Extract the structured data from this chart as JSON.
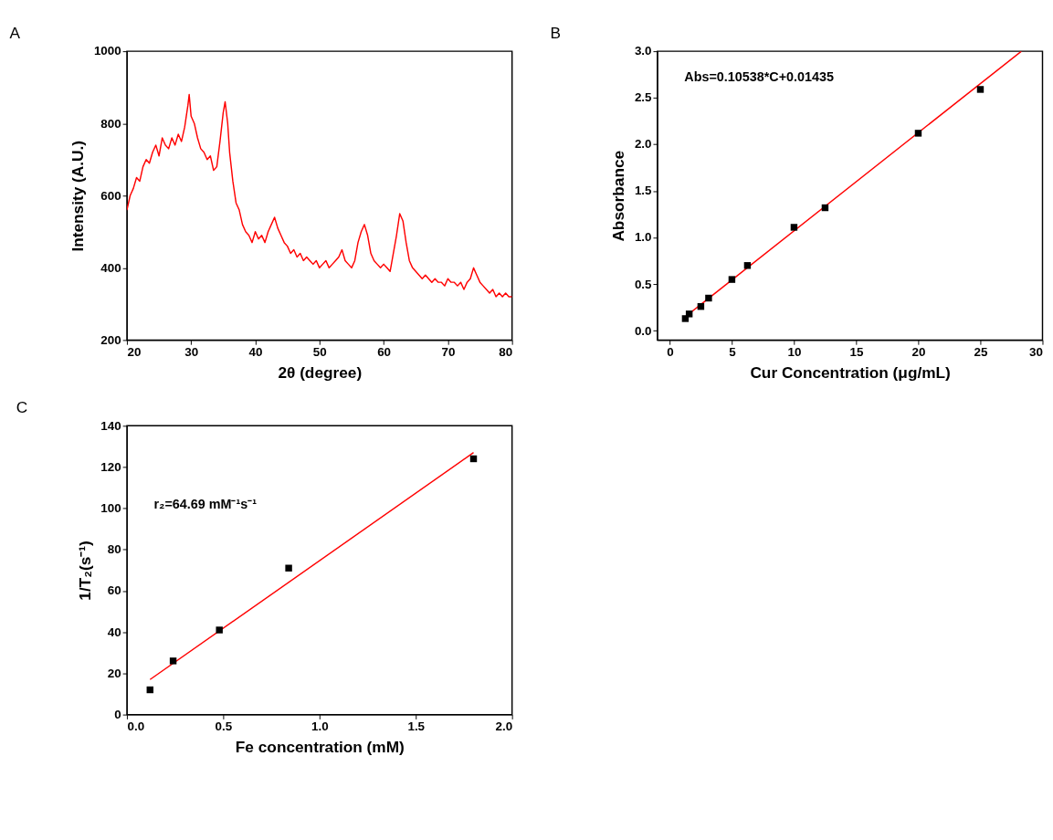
{
  "chart_data": [
    {
      "type": "line",
      "title": "A",
      "xlabel": "2θ (degree)",
      "ylabel": "Intensity (A.U.)",
      "xlim": [
        20,
        80
      ],
      "ylim": [
        200,
        1000
      ],
      "xticks": [
        20,
        30,
        40,
        50,
        60,
        70,
        80
      ],
      "yticks": [
        200,
        400,
        600,
        800,
        1000
      ],
      "grid": false,
      "series": [
        {
          "color": "#ff0000",
          "line_style": "solid",
          "x": [
            20,
            20.5,
            21,
            21.5,
            22,
            22.5,
            23,
            23.5,
            24,
            24.5,
            25,
            25.5,
            26,
            26.5,
            27,
            27.5,
            28,
            28.5,
            29,
            29.5,
            29.7,
            30,
            30.5,
            31,
            31.5,
            32,
            32.5,
            33,
            33.5,
            34,
            34.5,
            35,
            35.3,
            35.7,
            36,
            36.5,
            37,
            37.5,
            38,
            38.5,
            39,
            39.5,
            40,
            40.5,
            41,
            41.5,
            42,
            42.5,
            43,
            43.5,
            44,
            44.5,
            45,
            45.5,
            46,
            46.5,
            47,
            47.5,
            48,
            48.5,
            49,
            49.5,
            50,
            50.5,
            51,
            51.5,
            52,
            52.5,
            53,
            53.5,
            54,
            54.5,
            55,
            55.5,
            56,
            56.5,
            57,
            57.5,
            58,
            58.5,
            59,
            59.5,
            60,
            60.5,
            61,
            61.5,
            62,
            62.5,
            63,
            63.5,
            64,
            64.5,
            65,
            65.5,
            66,
            66.5,
            67,
            67.5,
            68,
            68.5,
            69,
            69.5,
            70,
            70.5,
            71,
            71.5,
            72,
            72.5,
            73,
            73.5,
            74,
            74.5,
            75,
            75.5,
            76,
            76.5,
            77,
            77.5,
            78,
            78.5,
            79,
            79.5,
            80
          ],
          "values": [
            560,
            600,
            620,
            650,
            640,
            680,
            700,
            690,
            720,
            740,
            710,
            760,
            740,
            730,
            760,
            740,
            770,
            750,
            790,
            850,
            880,
            820,
            800,
            760,
            730,
            720,
            700,
            710,
            670,
            680,
            750,
            830,
            860,
            800,
            720,
            640,
            580,
            560,
            520,
            500,
            490,
            470,
            500,
            480,
            490,
            470,
            500,
            520,
            540,
            510,
            490,
            470,
            460,
            440,
            450,
            430,
            440,
            420,
            430,
            420,
            410,
            420,
            400,
            410,
            420,
            400,
            410,
            420,
            430,
            450,
            420,
            410,
            400,
            420,
            470,
            500,
            520,
            490,
            440,
            420,
            410,
            400,
            410,
            400,
            390,
            440,
            490,
            550,
            530,
            470,
            420,
            400,
            390,
            380,
            370,
            380,
            370,
            360,
            370,
            360,
            360,
            350,
            370,
            360,
            360,
            350,
            360,
            340,
            360,
            370,
            400,
            380,
            360,
            350,
            340,
            330,
            340,
            320,
            330,
            320,
            330,
            320,
            320
          ]
        }
      ]
    },
    {
      "type": "scatter",
      "title": "B",
      "xlabel": "Cur Concentration (μg/mL)",
      "ylabel": "Absorbance",
      "xlim": [
        -1,
        30
      ],
      "ylim": [
        -0.1,
        3.0
      ],
      "xticks": [
        0,
        5,
        10,
        15,
        20,
        25,
        30
      ],
      "yticks": [
        {
          "value": 0,
          "label": "0.0"
        },
        {
          "value": 0.5,
          "label": "0.5"
        },
        {
          "value": 1,
          "label": "1.0"
        },
        {
          "value": 1.5,
          "label": "1.5"
        },
        {
          "value": 2,
          "label": "2.0"
        },
        {
          "value": 2.5,
          "label": "2.5"
        },
        {
          "value": 3,
          "label": "3.0"
        }
      ],
      "grid": false,
      "annotations": [
        "Abs=0.10538*C+0.01435"
      ],
      "series": [
        {
          "type": "line",
          "color": "#ff0000",
          "line_style": "solid",
          "x": [
            1.25,
            28.3
          ],
          "values": [
            0.15,
            3.0
          ]
        },
        {
          "type": "scatter",
          "color": "#000000",
          "marker": "square",
          "x": [
            1.25,
            1.5625,
            2.5,
            3.125,
            5,
            6.25,
            10,
            12.5,
            20,
            25
          ],
          "values": [
            0.13,
            0.18,
            0.26,
            0.35,
            0.55,
            0.7,
            1.11,
            1.32,
            2.12,
            2.59
          ]
        }
      ]
    },
    {
      "type": "scatter",
      "title": "C",
      "xlabel": "Fe concentration (mM)",
      "ylabel": "1/T₂(s⁻¹)",
      "xlim": [
        0,
        2
      ],
      "ylim": [
        0,
        140
      ],
      "xticks": [
        {
          "value": 0,
          "label": "0.0"
        },
        {
          "value": 0.5,
          "label": "0.5"
        },
        {
          "value": 1,
          "label": "1.0"
        },
        {
          "value": 1.5,
          "label": "1.5"
        },
        {
          "value": 2,
          "label": "2.0"
        }
      ],
      "yticks": [
        0,
        20,
        40,
        60,
        80,
        100,
        120,
        140
      ],
      "grid": false,
      "annotations": [
        "r₂=64.69 mM⁻¹s⁻¹"
      ],
      "series": [
        {
          "type": "line",
          "color": "#ff0000",
          "line_style": "solid",
          "x": [
            0.12,
            1.8
          ],
          "values": [
            17,
            127
          ]
        },
        {
          "type": "scatter",
          "color": "#000000",
          "marker": "square",
          "x": [
            0.12,
            0.24,
            0.48,
            0.84,
            1.8
          ],
          "values": [
            12,
            26,
            41,
            71,
            124
          ]
        }
      ]
    }
  ]
}
